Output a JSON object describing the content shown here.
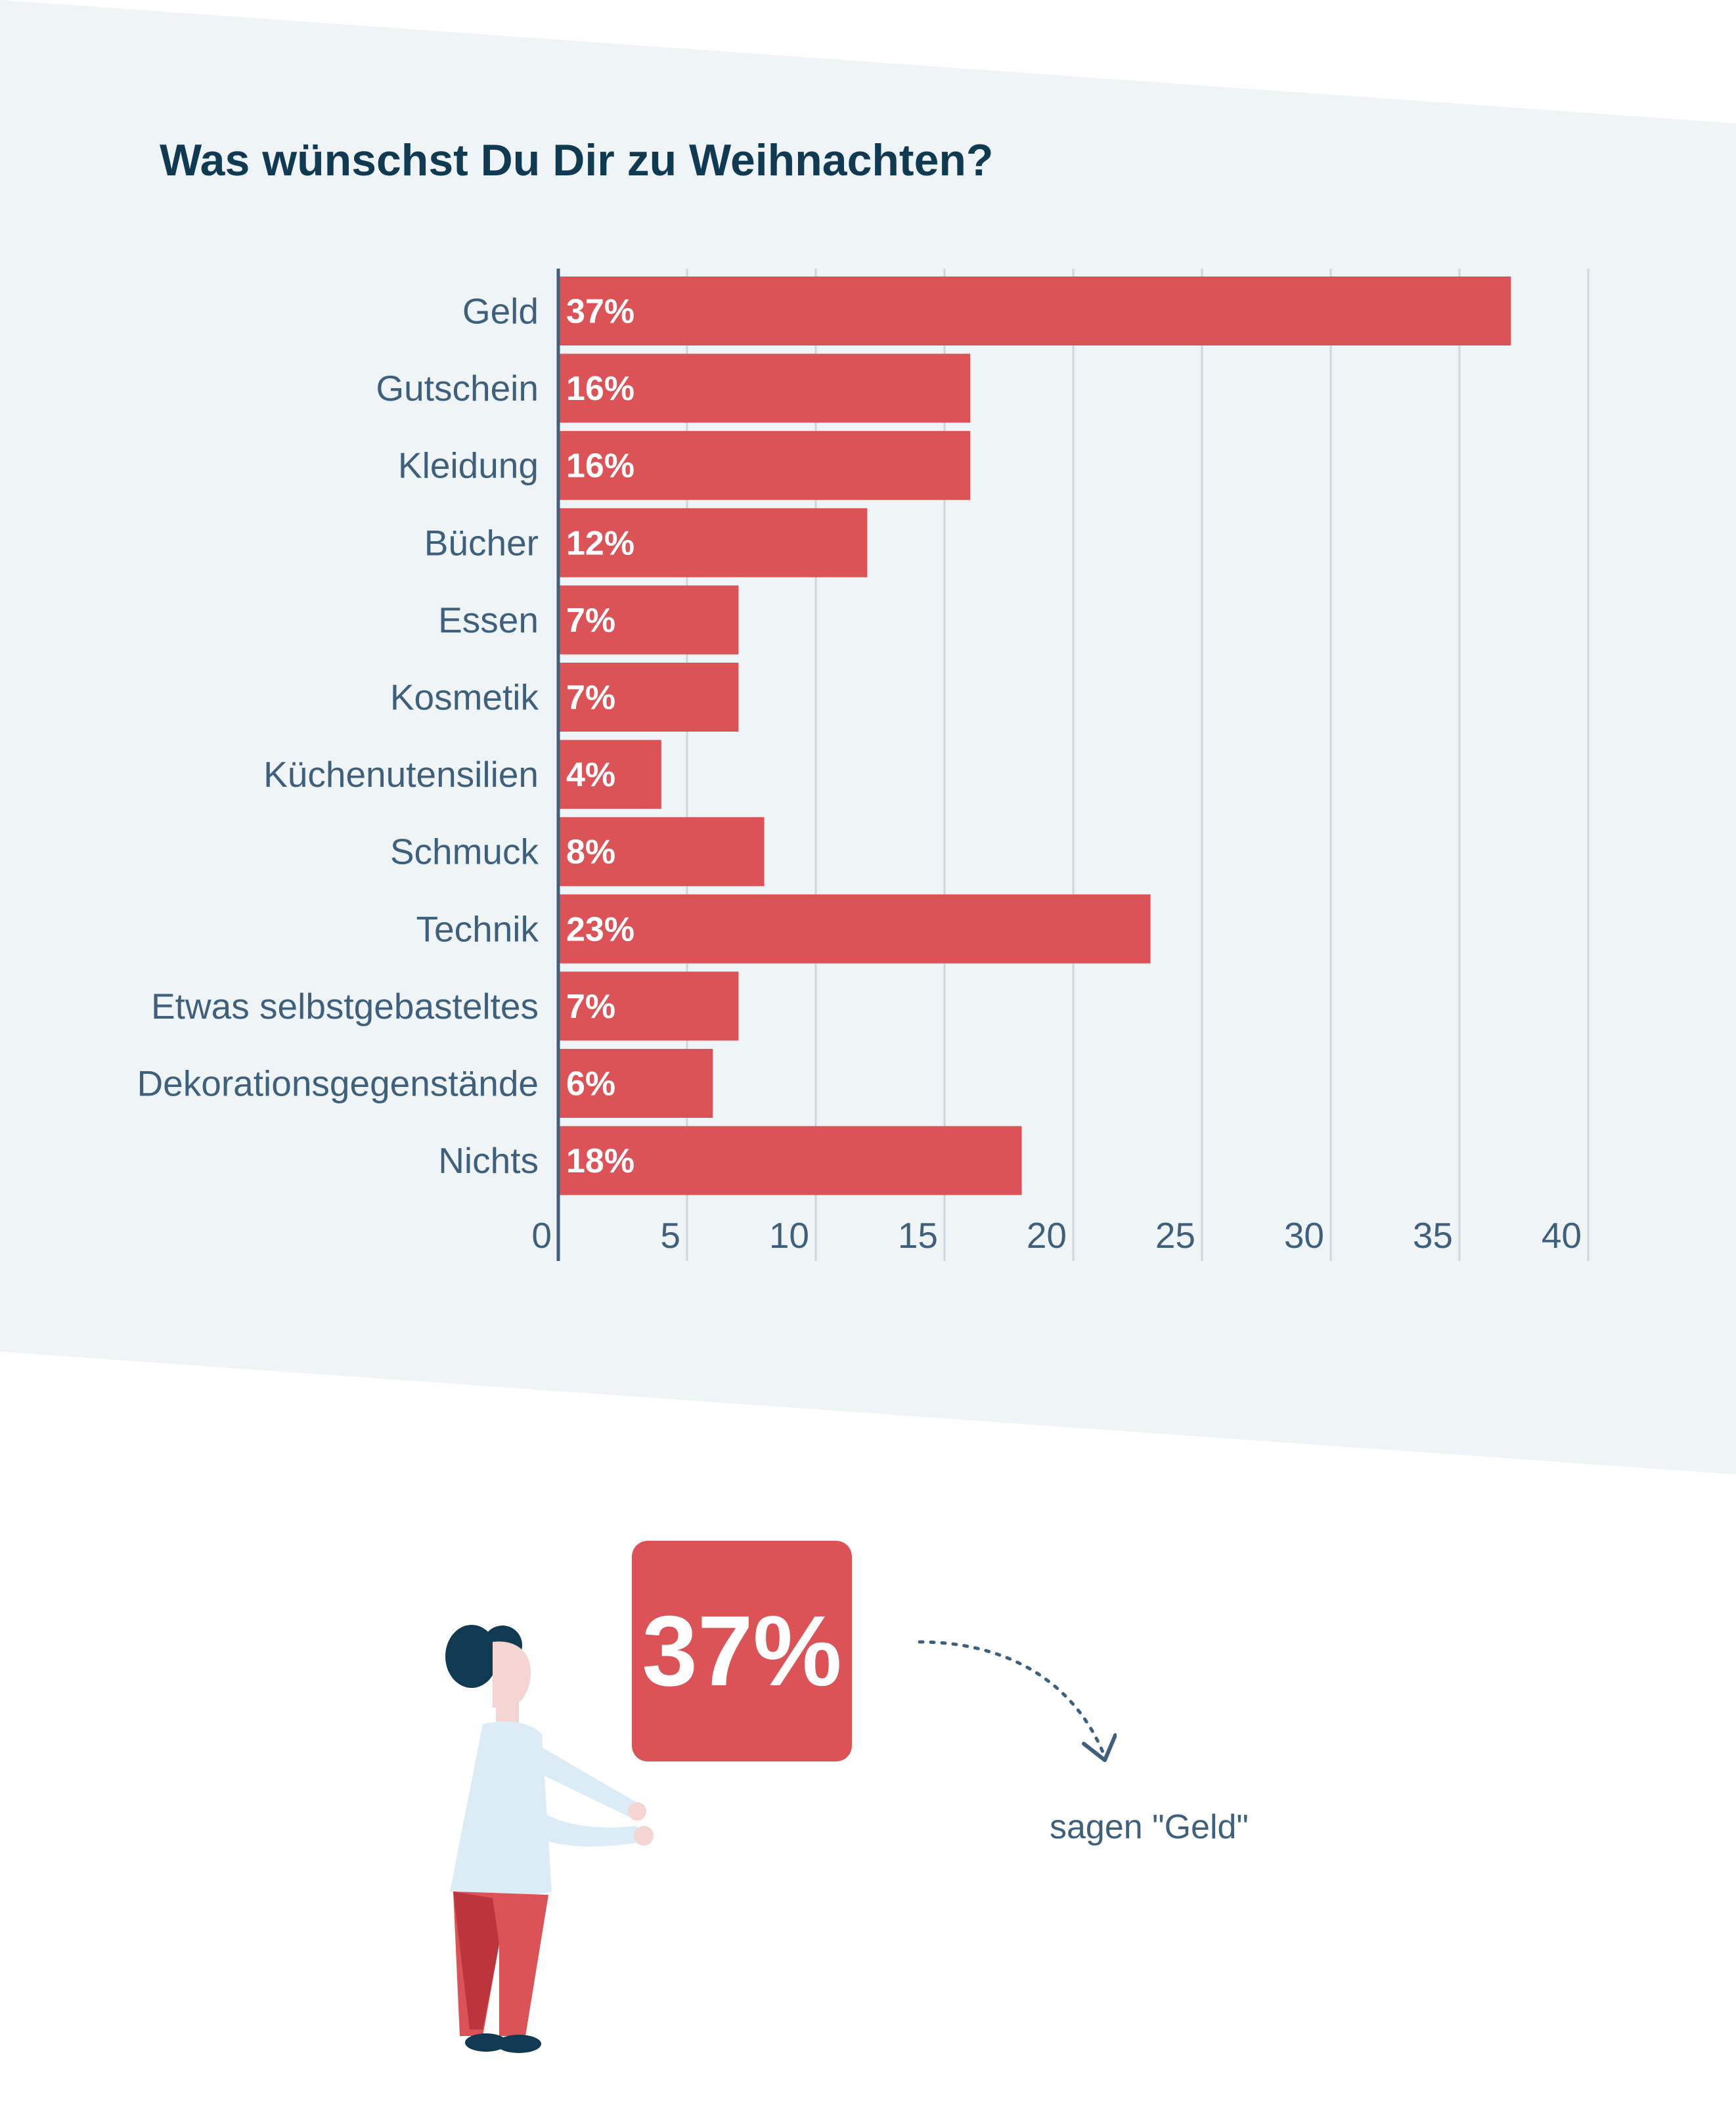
{
  "colors": {
    "background_band": "#eff5f7",
    "bar": "#dc5357",
    "axis": "#3e607c",
    "gridline": "#ccd7de",
    "title": "#103a52",
    "text": "#3e607c"
  },
  "chart_data": {
    "type": "bar",
    "orientation": "horizontal",
    "title": "Was wünschst Du Dir zu Weihnachten?",
    "categories": [
      "Geld",
      "Gutschein",
      "Kleidung",
      "Bücher",
      "Essen",
      "Kosmetik",
      "Küchenutensilien",
      "Schmuck",
      "Technik",
      "Etwas selbstgebasteltes",
      "Dekorationsgegenstände",
      "Nichts"
    ],
    "values": [
      37,
      16,
      16,
      12,
      7,
      7,
      4,
      8,
      23,
      7,
      6,
      18
    ],
    "data_labels": [
      "37%",
      "16%",
      "16%",
      "12%",
      "7%",
      "7%",
      "4%",
      "8%",
      "23%",
      "7%",
      "6%",
      "18%"
    ],
    "xlim": [
      0,
      40
    ],
    "x_ticks": [
      0,
      5,
      10,
      15,
      20,
      25,
      30,
      35,
      40
    ],
    "x_tick_labels": [
      "0",
      "5",
      "10",
      "15",
      "20",
      "25",
      "30",
      "35",
      "40"
    ],
    "grid": true,
    "legend": "none"
  },
  "callout": {
    "value_label": "37%",
    "caption": "sagen \"Geld\""
  },
  "icons": {
    "person": "person-holding-sign-icon",
    "arrow": "dotted-curved-arrow-icon"
  }
}
